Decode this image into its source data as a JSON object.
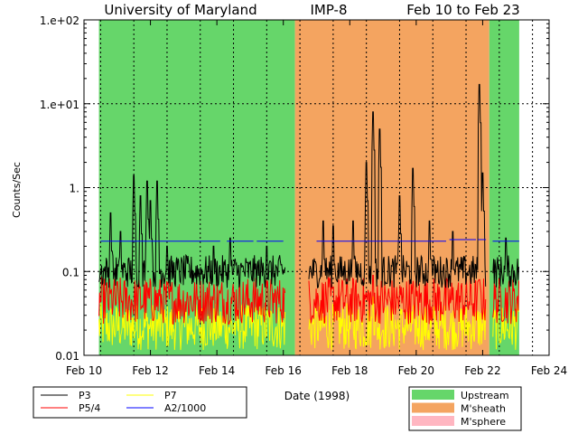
{
  "chart_data": {
    "type": "line",
    "title_parts": [
      "University of Maryland",
      "IMP-8",
      "Feb 10 to Feb 23"
    ],
    "xlabel": "Date (1998)",
    "ylabel": "Counts/Sec",
    "xlim": [
      10,
      24
    ],
    "ylim": [
      0.01,
      100
    ],
    "y_scale": "log",
    "grid": "dotted",
    "x_ticks": [
      {
        "v": 10,
        "label": "Feb 10"
      },
      {
        "v": 12,
        "label": "Feb 12"
      },
      {
        "v": 14,
        "label": "Feb 14"
      },
      {
        "v": 16,
        "label": "Feb 16"
      },
      {
        "v": 18,
        "label": "Feb 18"
      },
      {
        "v": 20,
        "label": "Feb 20"
      },
      {
        "v": 22,
        "label": "Feb 22"
      },
      {
        "v": 24,
        "label": "Feb 24"
      }
    ],
    "y_ticks": [
      {
        "v": 100,
        "label": "1.e+02"
      },
      {
        "v": 10,
        "label": "1.e+01"
      },
      {
        "v": 1,
        "label": "1."
      },
      {
        "v": 0.1,
        "label": "0.1"
      },
      {
        "v": 0.01,
        "label": "0.01"
      }
    ],
    "regions": [
      {
        "name": "Upstream",
        "start": 10.45,
        "end": 16.35
      },
      {
        "name": "M'sheath",
        "start": 16.35,
        "end": 22.2
      },
      {
        "name": "Upstream",
        "start": 22.2,
        "end": 23.1
      }
    ],
    "region_legend": [
      {
        "name": "Upstream",
        "color": "#66d66a"
      },
      {
        "name": "M'sheath",
        "color": "#f4a460"
      },
      {
        "name": "M'sphere",
        "color": "#ffb6c1"
      }
    ],
    "series_legend": [
      {
        "name": "P3",
        "color": "#000000"
      },
      {
        "name": "P7",
        "color": "#ffff00"
      },
      {
        "name": "P5/4",
        "color": "#ff0000"
      },
      {
        "name": "A2/1000",
        "color": "#0000ff"
      }
    ],
    "data_range": [
      10.45,
      23.1
    ],
    "gaps": [
      [
        16.05,
        16.75
      ],
      [
        22.1,
        22.3
      ]
    ],
    "series": [
      {
        "name": "P3",
        "baseline": 0.1,
        "spikes": [
          [
            10.8,
            0.5
          ],
          [
            11.1,
            0.3
          ],
          [
            11.5,
            1.4
          ],
          [
            11.7,
            0.8
          ],
          [
            11.9,
            1.2
          ],
          [
            12.0,
            0.7
          ],
          [
            12.2,
            1.2
          ],
          [
            12.5,
            0.2
          ],
          [
            13.9,
            0.2
          ],
          [
            14.4,
            0.25
          ],
          [
            15.5,
            0.2
          ],
          [
            17.2,
            0.4
          ],
          [
            17.5,
            0.35
          ],
          [
            18.1,
            0.4
          ],
          [
            18.5,
            2.0
          ],
          [
            18.7,
            8.0
          ],
          [
            18.9,
            5.0
          ],
          [
            19.5,
            0.8
          ],
          [
            19.9,
            1.7
          ],
          [
            20.4,
            0.4
          ],
          [
            21.1,
            0.3
          ],
          [
            21.9,
            17.0
          ],
          [
            22.0,
            1.5
          ],
          [
            22.7,
            0.25
          ]
        ]
      },
      {
        "name": "P5/4",
        "baseline": 0.045,
        "spikes": [
          [
            18.7,
            0.09
          ],
          [
            21.9,
            0.08
          ]
        ]
      },
      {
        "name": "P7",
        "baseline": 0.022,
        "spikes": [
          [
            18.7,
            0.05
          ]
        ]
      },
      {
        "name": "A2/1000",
        "baseline": 0.23,
        "segments": [
          [
            10.5,
            14.1,
            0.23
          ],
          [
            14.3,
            15.1,
            0.23
          ],
          [
            15.2,
            16.0,
            0.23
          ],
          [
            17.0,
            20.9,
            0.23
          ],
          [
            21.0,
            21.8,
            0.24
          ],
          [
            21.85,
            22.1,
            0.24
          ],
          [
            22.3,
            23.1,
            0.23
          ]
        ]
      }
    ]
  }
}
